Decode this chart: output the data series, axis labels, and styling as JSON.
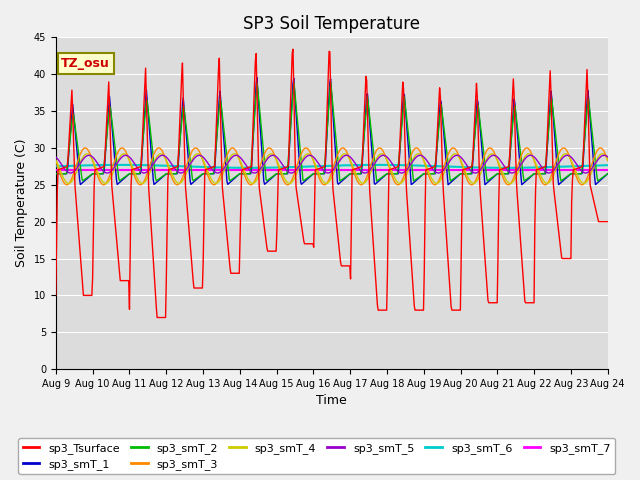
{
  "title": "SP3 Soil Temperature",
  "xlabel": "Time",
  "ylabel": "Soil Temperature (C)",
  "ylim": [
    0,
    45
  ],
  "x_tick_labels": [
    "Aug 9",
    "Aug 10",
    "Aug 11",
    "Aug 12",
    "Aug 13",
    "Aug 14",
    "Aug 15",
    "Aug 16",
    "Aug 17",
    "Aug 18",
    "Aug 19",
    "Aug 20",
    "Aug 21",
    "Aug 22",
    "Aug 23",
    "Aug 24"
  ],
  "annotation_text": "TZ_osu",
  "series_colors": {
    "sp3_Tsurface": "#ff0000",
    "sp3_smT_1": "#0000cc",
    "sp3_smT_2": "#00bb00",
    "sp3_smT_3": "#ff8800",
    "sp3_smT_4": "#cccc00",
    "sp3_smT_5": "#9900cc",
    "sp3_smT_6": "#00cccc",
    "sp3_smT_7": "#ff00ff"
  },
  "bg_color": "#dcdcdc",
  "plot_bg_color": "#dcdcdc",
  "fig_bg_color": "#f0f0f0",
  "grid_color": "#ffffff",
  "title_fontsize": 12,
  "axis_fontsize": 9,
  "legend_fontsize": 8,
  "tick_fontsize": 7
}
